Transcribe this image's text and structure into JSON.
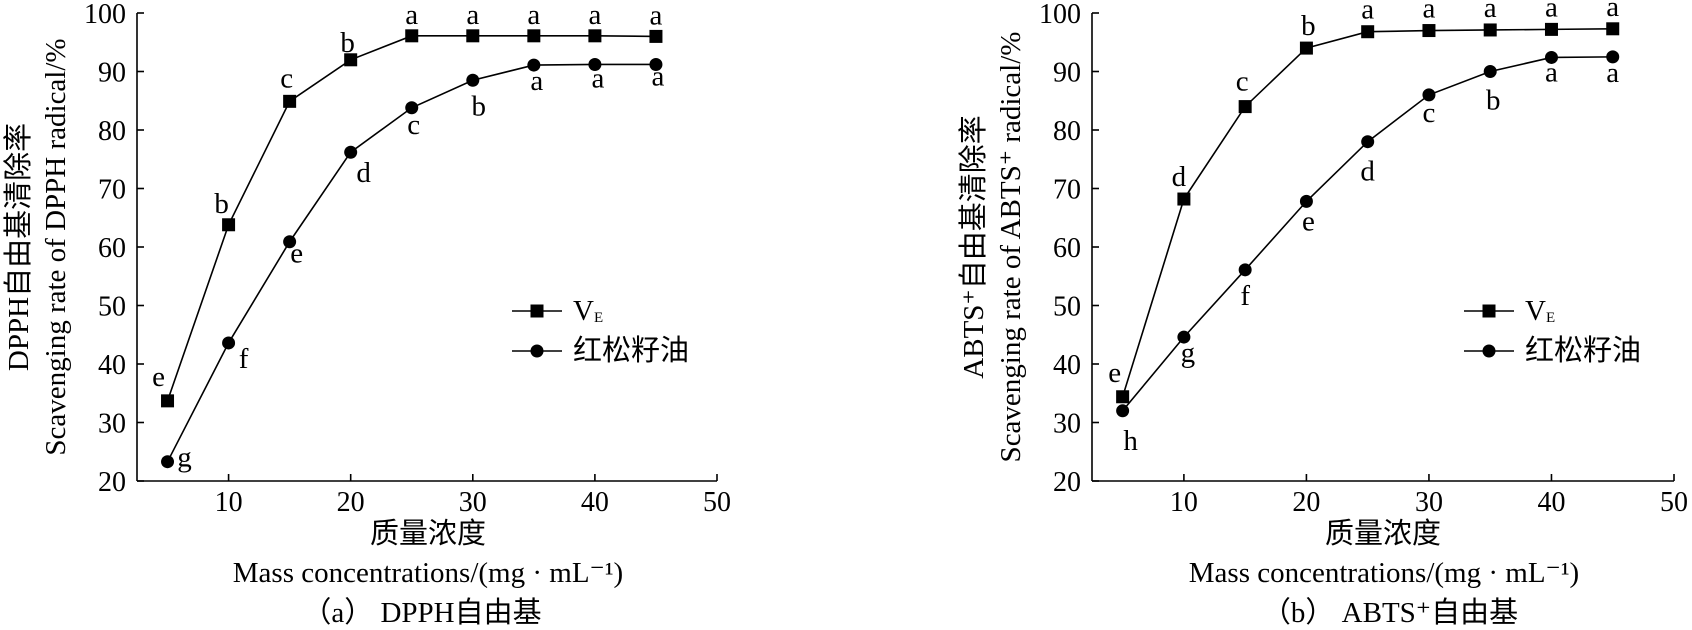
{
  "chart_data": [
    {
      "type": "line",
      "caption": "（a） DPPH自由基",
      "xlabel": "质量浓度",
      "xlabel_en": "Mass concentrations/(mg · mL⁻¹)",
      "ylabel": "DPPH自由基清除率",
      "ylabel_en": "Scavenging rate of DPPH radical/%",
      "x": [
        5,
        10,
        15,
        20,
        25,
        30,
        35,
        40,
        45
      ],
      "xlim": [
        2.5,
        50
      ],
      "ylim": [
        20,
        100
      ],
      "x_ticks": [
        10,
        20,
        30,
        40,
        50
      ],
      "y_ticks": [
        20,
        30,
        40,
        50,
        60,
        70,
        80,
        90,
        100
      ],
      "grid": false,
      "legend": "center-right",
      "series": [
        {
          "name": "V",
          "name_sub": "E",
          "marker": "square",
          "color": "#000000",
          "values": [
            33.7,
            63.8,
            84.9,
            92.0,
            96.1,
            96.1,
            96.1,
            96.1,
            96.0
          ],
          "labels": [
            "e",
            "b",
            "c",
            "b",
            "a",
            "a",
            "a",
            "a",
            "a"
          ]
        },
        {
          "name": "红松籽油",
          "marker": "circle",
          "color": "#000000",
          "values": [
            23.3,
            43.6,
            60.9,
            76.2,
            83.8,
            88.5,
            91.1,
            91.2,
            91.2
          ],
          "labels": [
            "g",
            "f",
            "e",
            "d",
            "c",
            "b",
            "a",
            "a",
            "a"
          ]
        }
      ]
    },
    {
      "type": "line",
      "caption": "（b） ABTS⁺自由基",
      "xlabel": "质量浓度",
      "xlabel_en": "Mass concentrations/(mg · mL⁻¹)",
      "ylabel": "ABTS⁺自由基清除率",
      "ylabel_en": "Scavenging rate of ABTS⁺ radical/%",
      "x": [
        5,
        10,
        15,
        20,
        25,
        30,
        35,
        40,
        45
      ],
      "xlim": [
        2.5,
        50
      ],
      "ylim": [
        20,
        100
      ],
      "x_ticks": [
        10,
        20,
        30,
        40,
        50
      ],
      "y_ticks": [
        20,
        30,
        40,
        50,
        60,
        70,
        80,
        90,
        100
      ],
      "grid": false,
      "legend": "center-right",
      "series": [
        {
          "name": "V",
          "name_sub": "E",
          "marker": "square",
          "color": "#000000",
          "values": [
            34.4,
            68.2,
            84.0,
            94.0,
            96.8,
            97.0,
            97.1,
            97.2,
            97.3
          ],
          "labels": [
            "e",
            "d",
            "c",
            "b",
            "a",
            "a",
            "a",
            "a",
            "a"
          ]
        },
        {
          "name": "红松籽油",
          "marker": "circle",
          "color": "#000000",
          "values": [
            32.0,
            44.6,
            56.1,
            67.8,
            78.0,
            86.0,
            90.0,
            92.4,
            92.5
          ],
          "labels": [
            "h",
            "g",
            "f",
            "e",
            "d",
            "c",
            "b",
            "a",
            "a"
          ]
        }
      ]
    }
  ]
}
